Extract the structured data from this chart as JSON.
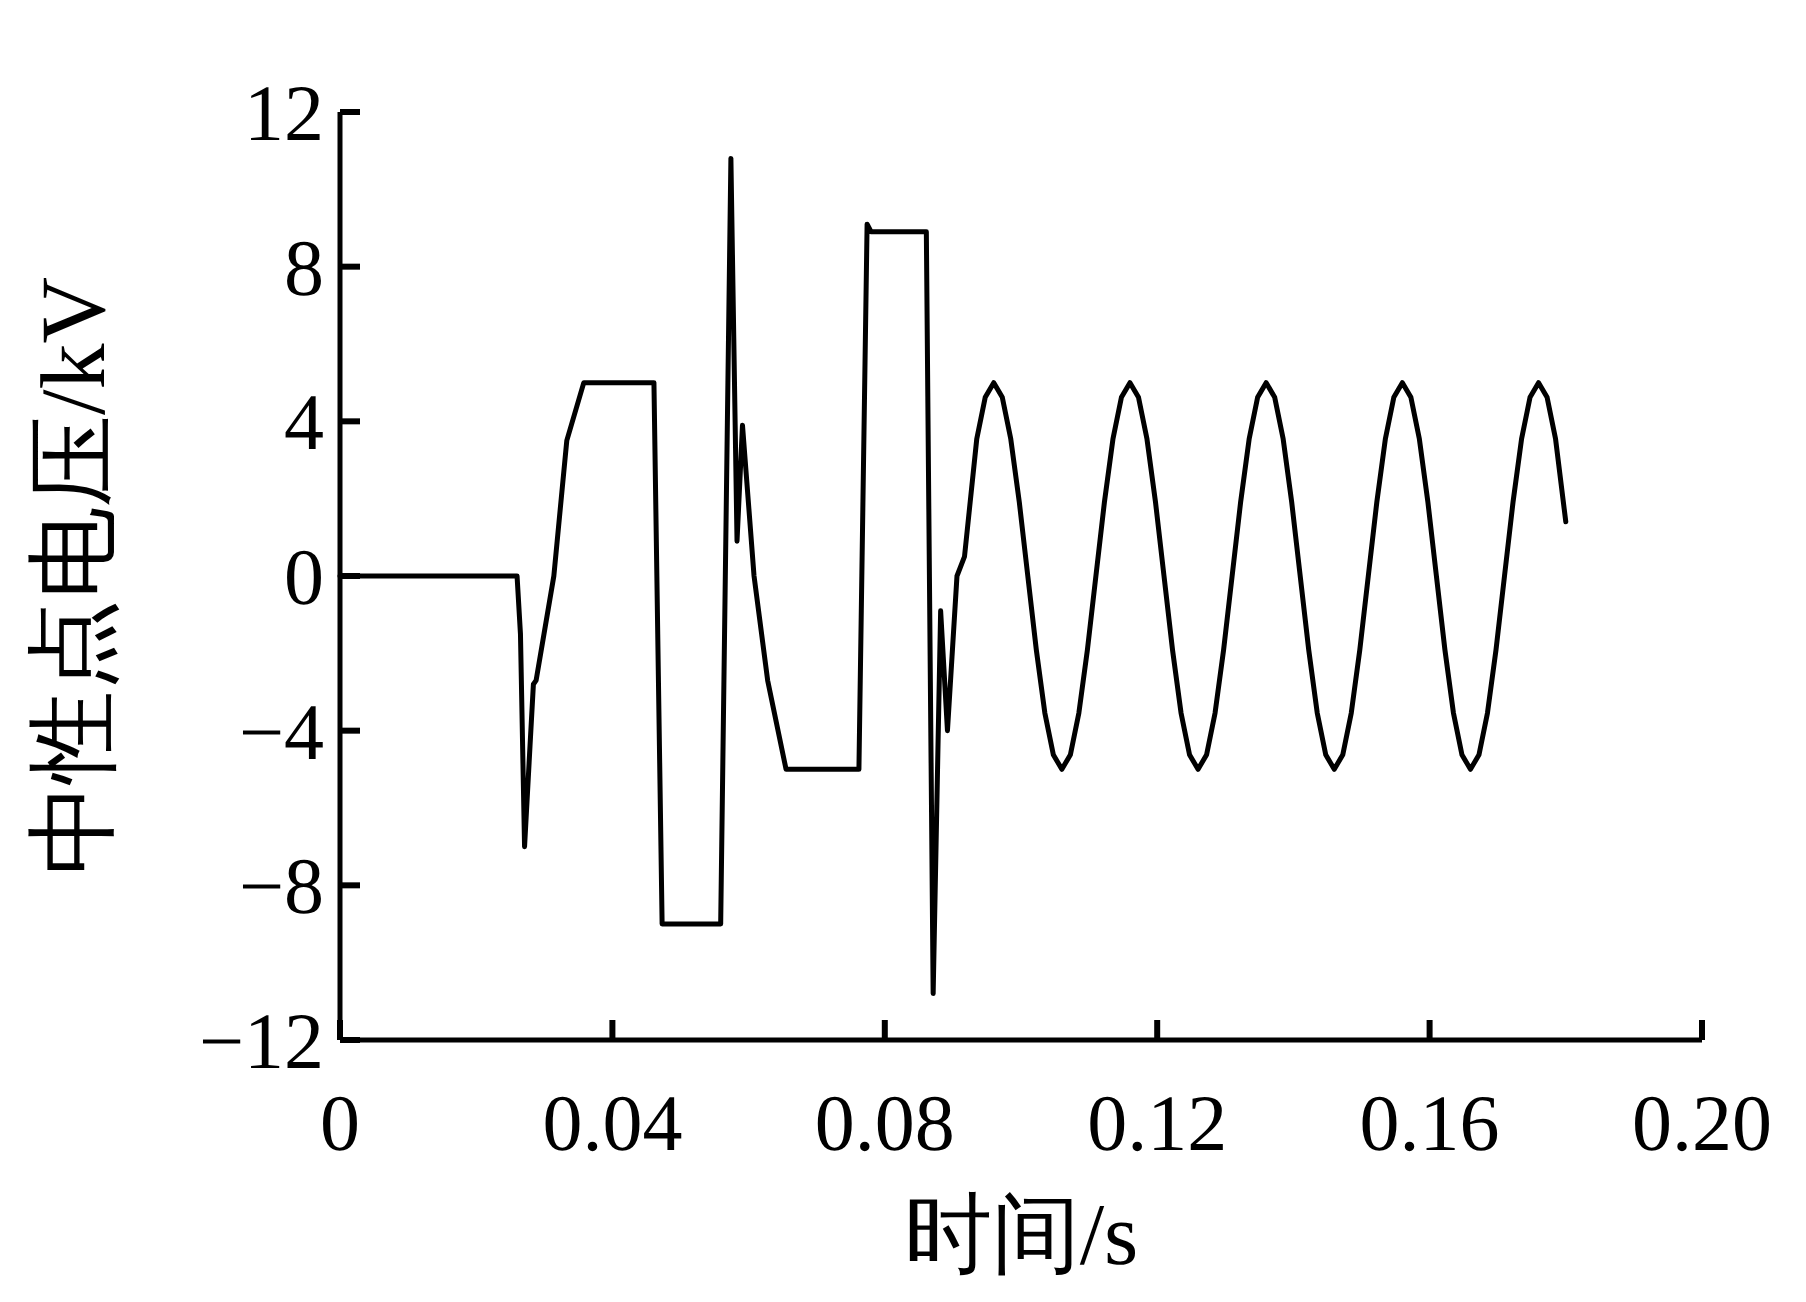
{
  "chart_data": {
    "type": "line",
    "xlabel": "时间/s",
    "ylabel": "中性点电压/kV",
    "xlim": [
      0,
      0.2
    ],
    "xticks": [
      0,
      0.04,
      0.08,
      0.12,
      0.16,
      {
        "value": 0.2,
        "label": "0.20"
      }
    ],
    "ylim": [
      -12,
      12
    ],
    "yticks": [
      12,
      8,
      4,
      0,
      -4,
      -8,
      -12
    ],
    "series": [
      {
        "color": "#000000",
        "x": [
          0,
          0.026,
          0.0265,
          0.0271,
          0.0279,
          0.0284,
          0.0288,
          0.0314,
          0.0333,
          0.0358,
          0.0461,
          0.0473,
          0.0559,
          0.0574,
          0.0583,
          0.0591,
          0.0608,
          0.0628,
          0.0655,
          0.0762,
          0.0774,
          0.078,
          0.0861,
          0.0871,
          0.0882,
          0.0892,
          0.0906,
          0.0917,
          0.0935,
          0.09475,
          0.096,
          0.09725,
          0.0985,
          0.09975,
          0.101,
          0.10225,
          0.1035,
          0.10475,
          0.106,
          0.10725,
          0.1085,
          0.10975,
          0.111,
          0.11225,
          0.1135,
          0.11475,
          0.116,
          0.11725,
          0.1185,
          0.11975,
          0.121,
          0.12225,
          0.1235,
          0.12475,
          0.126,
          0.12725,
          0.1285,
          0.12975,
          0.131,
          0.13225,
          0.1335,
          0.13475,
          0.136,
          0.13725,
          0.1385,
          0.13975,
          0.141,
          0.14225,
          0.1435,
          0.14475,
          0.146,
          0.14725,
          0.1485,
          0.14975,
          0.151,
          0.15225,
          0.1535,
          0.15475,
          0.156,
          0.15725,
          0.1585,
          0.15975,
          0.161,
          0.16225,
          0.1635,
          0.16475,
          0.166,
          0.16725,
          0.1685,
          0.16975,
          0.171,
          0.17225,
          0.1735,
          0.17475,
          0.176,
          0.17725,
          0.1785,
          0.18
        ],
        "values": [
          0,
          0,
          -1.5,
          -7,
          -4.4,
          -2.8,
          -2.7,
          0,
          3.5,
          5,
          5,
          -9,
          -9,
          10.8,
          0.9,
          3.9,
          0,
          -2.7,
          -5,
          -5,
          9.1,
          8.9,
          8.9,
          -10.8,
          -0.9,
          -4,
          0,
          0.5,
          3.54,
          4.62,
          5,
          4.62,
          3.54,
          1.91,
          0,
          -1.91,
          -3.54,
          -4.62,
          -5,
          -4.62,
          -3.54,
          -1.91,
          0,
          1.91,
          3.54,
          4.62,
          5,
          4.62,
          3.54,
          1.91,
          0,
          -1.91,
          -3.54,
          -4.62,
          -5,
          -4.62,
          -3.54,
          -1.91,
          0,
          1.91,
          3.54,
          4.62,
          5,
          4.62,
          3.54,
          1.91,
          0,
          -1.91,
          -3.54,
          -4.62,
          -5,
          -4.62,
          -3.54,
          -1.91,
          0,
          1.91,
          3.54,
          4.62,
          5,
          4.62,
          3.54,
          1.91,
          0,
          -1.91,
          -3.54,
          -4.62,
          -5,
          -4.62,
          -3.54,
          -1.91,
          0,
          1.91,
          3.54,
          4.62,
          5,
          4.62,
          3.54,
          1.4
        ]
      }
    ]
  }
}
